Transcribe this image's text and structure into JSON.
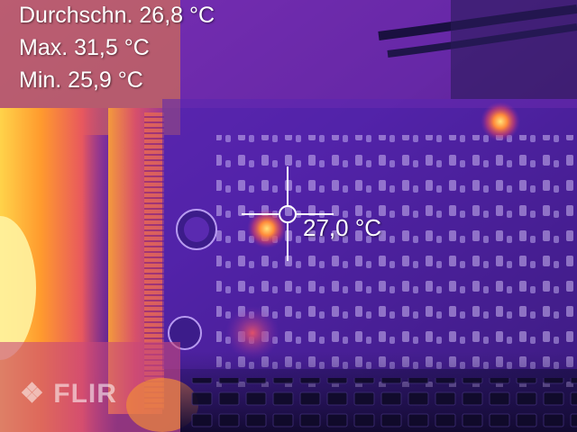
{
  "readouts": {
    "average": "Durchschn. 26,8 °C",
    "max": "Max. 31,5 °C",
    "min": "Min. 25,9 °C"
  },
  "spot": {
    "value": "27,0 °C"
  },
  "brand": {
    "logo_text": "FLIR"
  },
  "colors": {
    "palette": "iron",
    "cold": "#1a0b3f",
    "mid": "#6a2ac0",
    "warm": "#e0506a",
    "hot": "#ffd84a"
  }
}
